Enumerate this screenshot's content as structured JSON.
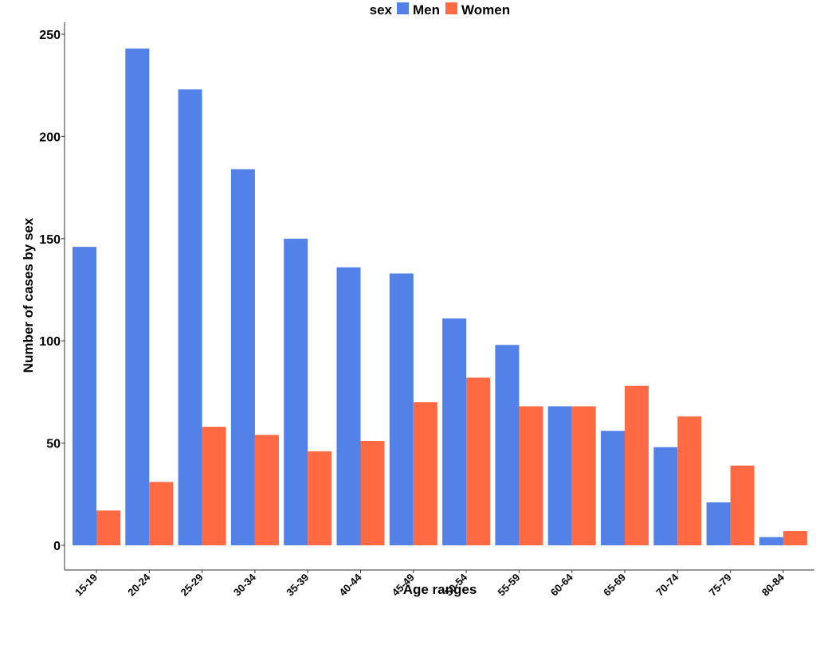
{
  "chart_data": {
    "type": "bar",
    "title": "",
    "xlabel": "Age ranges",
    "ylabel": "Number of cases by sex",
    "ylim": [
      0,
      250
    ],
    "yticks": [
      0,
      50,
      100,
      150,
      200,
      250
    ],
    "grid": false,
    "legend": {
      "title": "sex",
      "position": "top",
      "entries": [
        "Men",
        "Women"
      ]
    },
    "categories": [
      "15-19",
      "20-24",
      "25-29",
      "30-34",
      "35-39",
      "40-44",
      "45-49",
      "50-54",
      "55-59",
      "60-64",
      "65-69",
      "70-74",
      "75-79",
      "80-84"
    ],
    "series": [
      {
        "name": "Men",
        "color": "#5281E8",
        "values": [
          146,
          243,
          223,
          184,
          150,
          136,
          133,
          111,
          98,
          68,
          56,
          48,
          21,
          4
        ]
      },
      {
        "name": "Women",
        "color": "#FF6A42",
        "values": [
          17,
          31,
          58,
          54,
          46,
          51,
          70,
          82,
          68,
          68,
          78,
          63,
          39,
          7
        ]
      }
    ]
  }
}
